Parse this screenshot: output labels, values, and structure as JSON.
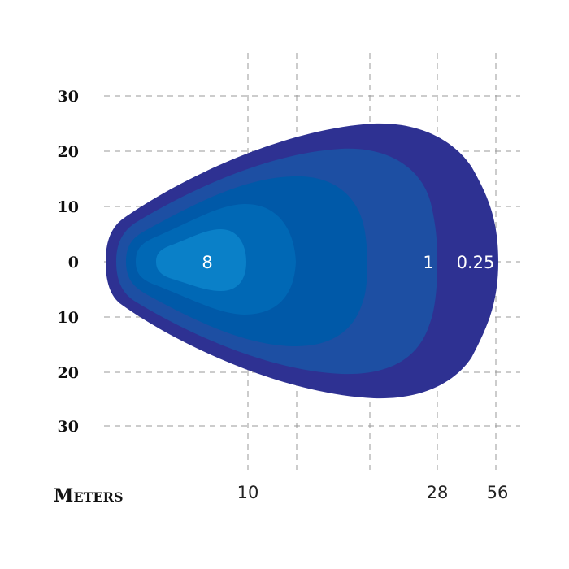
{
  "chart_data": {
    "type": "contour",
    "xlabel": "Meters",
    "x_ticks": [
      "10",
      "28",
      "56"
    ],
    "y_ticks": [
      "30",
      "20",
      "10",
      "0",
      "10",
      "20",
      "30"
    ],
    "grid": true,
    "levels": [
      {
        "label": "0.25",
        "color": "#2e3192"
      },
      {
        "label": "",
        "color": "#2b3f9c"
      },
      {
        "label": "1",
        "color": "#1d4fa3"
      },
      {
        "label": "",
        "color": "#0059a8"
      },
      {
        "label": "",
        "color": "#0068b5"
      },
      {
        "label": "8",
        "color": "#0a80c8"
      }
    ]
  }
}
